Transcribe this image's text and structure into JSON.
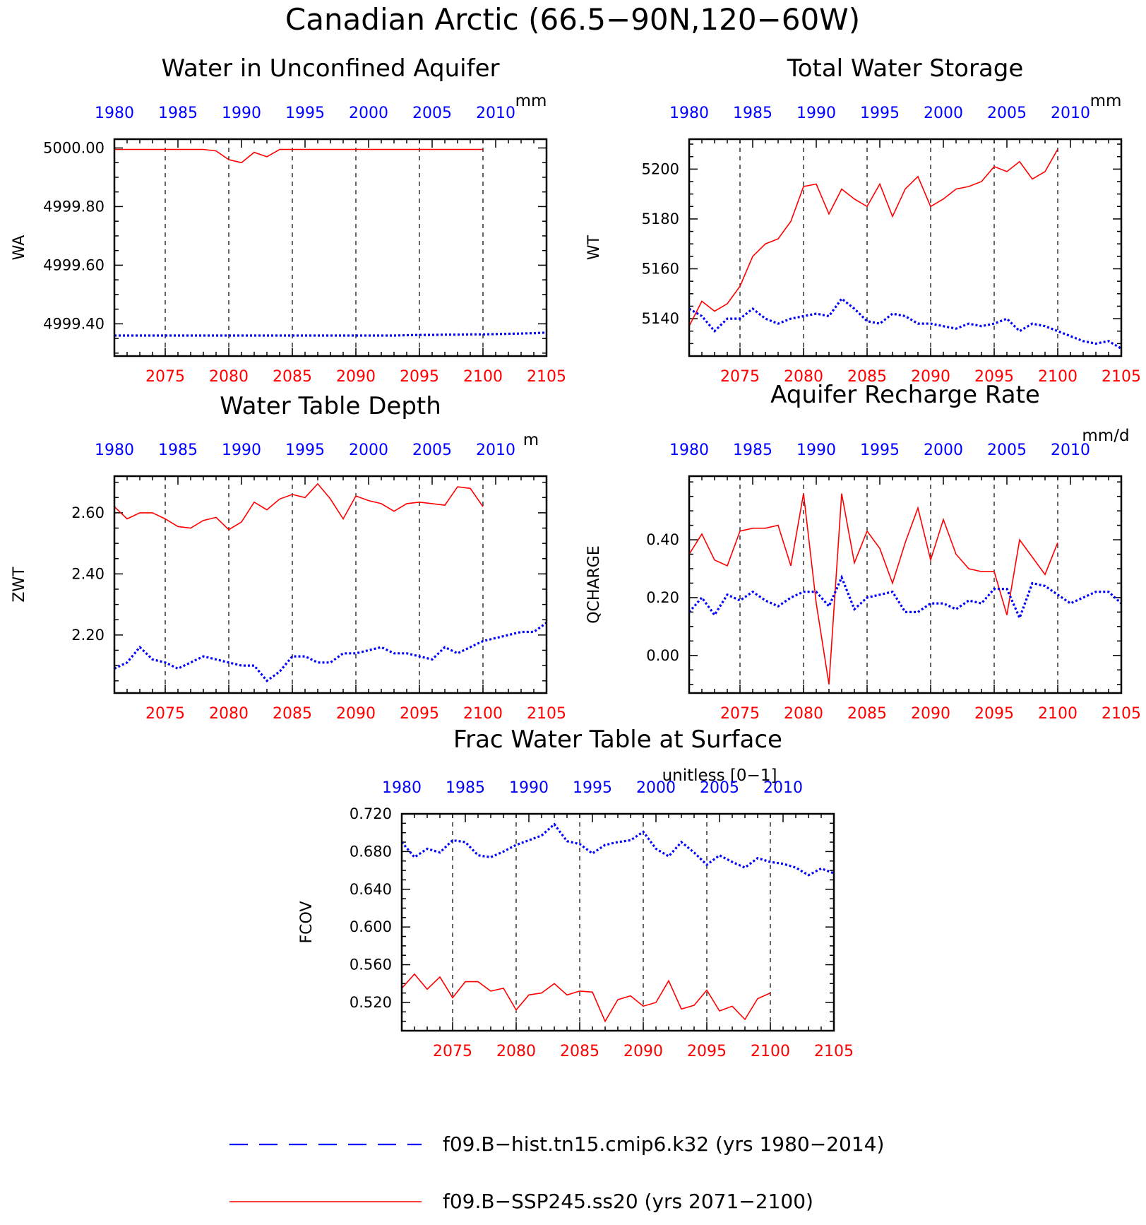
{
  "figure_title": "Canadian Arctic (66.5−90N,120−60W)",
  "colors": {
    "hist": "#0000ff",
    "ssp": "#ff0000",
    "axis": "#000000"
  },
  "legend": [
    {
      "label": "f09.B−hist.tn15.cmip6.k32 (yrs 1980−2014)",
      "series": "hist",
      "style": "dashed"
    },
    {
      "label": "f09.B−SSP245.ss20 (yrs 2071−2100)",
      "series": "ssp",
      "style": "solid"
    }
  ],
  "chart_data": [
    {
      "type": "line",
      "title": "Water in Unconfined Aquifer",
      "ylabel": "WA",
      "units": "mm",
      "ylim": [
        4999.29,
        5000.03
      ],
      "yticks": [
        4999.4,
        4999.6,
        4999.8,
        5000.0
      ],
      "ytick_labels": [
        "4999.40",
        "4999.60",
        "4999.80",
        "5000.00"
      ],
      "bottom_xaxis": {
        "range": [
          2071,
          2105
        ],
        "ticks": [
          2075,
          2080,
          2085,
          2090,
          2095,
          2100,
          2105
        ]
      },
      "top_xaxis": {
        "range": [
          1980,
          2014
        ],
        "ticks": [
          1980,
          1985,
          1990,
          1995,
          2000,
          2005,
          2010
        ]
      },
      "vgrid": [
        2075,
        2080,
        2085,
        2090,
        2095,
        2100
      ],
      "series": [
        {
          "key": "ssp",
          "start": 2071,
          "values": [
            4999.995,
            4999.995,
            4999.995,
            4999.995,
            4999.995,
            4999.995,
            4999.995,
            4999.995,
            4999.99,
            4999.96,
            4999.95,
            4999.985,
            4999.97,
            4999.995,
            4999.995,
            4999.995,
            4999.995,
            4999.995,
            4999.995,
            4999.995,
            4999.995,
            4999.995,
            4999.995,
            4999.995,
            4999.995,
            4999.995,
            4999.995,
            4999.995,
            4999.995,
            4999.995
          ]
        },
        {
          "key": "hist",
          "start": 2071,
          "values": [
            4999.36,
            4999.36,
            4999.36,
            4999.36,
            4999.36,
            4999.36,
            4999.36,
            4999.36,
            4999.36,
            4999.36,
            4999.36,
            4999.36,
            4999.36,
            4999.36,
            4999.36,
            4999.36,
            4999.36,
            4999.36,
            4999.36,
            4999.36,
            4999.36,
            4999.36,
            4999.36,
            4999.361,
            4999.362,
            4999.362,
            4999.363,
            4999.363,
            4999.364,
            4999.364,
            4999.365,
            4999.366,
            4999.367,
            4999.368,
            4999.37
          ]
        }
      ]
    },
    {
      "type": "line",
      "title": "Total Water Storage",
      "ylabel": "WT",
      "units": "mm",
      "ylim": [
        5125,
        5212
      ],
      "yticks": [
        5140,
        5160,
        5180,
        5200
      ],
      "ytick_labels": [
        "5140",
        "5160",
        "5180",
        "5200"
      ],
      "bottom_xaxis": {
        "range": [
          2071,
          2105
        ],
        "ticks": [
          2075,
          2080,
          2085,
          2090,
          2095,
          2100,
          2105
        ]
      },
      "top_xaxis": {
        "range": [
          1980,
          2014
        ],
        "ticks": [
          1980,
          1985,
          1990,
          1995,
          2000,
          2005,
          2010
        ]
      },
      "vgrid": [
        2075,
        2080,
        2085,
        2090,
        2095,
        2100
      ],
      "series": [
        {
          "key": "ssp",
          "start": 2071,
          "values": [
            5137,
            5147,
            5143,
            5146,
            5153,
            5165,
            5170,
            5172,
            5179,
            5193,
            5194,
            5182,
            5192,
            5188,
            5185,
            5194,
            5181,
            5192,
            5197,
            5185,
            5188,
            5192,
            5193,
            5195,
            5201,
            5199,
            5203,
            5196,
            5199,
            5208
          ]
        },
        {
          "key": "hist",
          "start": 2071,
          "values": [
            5144,
            5141,
            5135,
            5140,
            5140,
            5144,
            5140,
            5138,
            5140,
            5141,
            5142,
            5141,
            5148,
            5144,
            5139,
            5138,
            5142,
            5141,
            5138,
            5138,
            5137,
            5136,
            5138,
            5137,
            5138,
            5140,
            5135,
            5138,
            5137,
            5135,
            5133,
            5131,
            5130,
            5131,
            5128
          ]
        }
      ]
    },
    {
      "type": "line",
      "title": "Water Table Depth",
      "ylabel": "ZWT",
      "units": "m",
      "ylim": [
        2.01,
        2.72
      ],
      "yticks": [
        2.2,
        2.4,
        2.6
      ],
      "ytick_labels": [
        "2.20",
        "2.40",
        "2.60"
      ],
      "bottom_xaxis": {
        "range": [
          2071,
          2105
        ],
        "ticks": [
          2075,
          2080,
          2085,
          2090,
          2095,
          2100,
          2105
        ]
      },
      "top_xaxis": {
        "range": [
          1980,
          2014
        ],
        "ticks": [
          1980,
          1985,
          1990,
          1995,
          2000,
          2005,
          2010
        ]
      },
      "vgrid": [
        2075,
        2080,
        2085,
        2090,
        2095,
        2100
      ],
      "series": [
        {
          "key": "ssp",
          "start": 2071,
          "values": [
            2.62,
            2.58,
            2.6,
            2.6,
            2.58,
            2.555,
            2.55,
            2.575,
            2.585,
            2.545,
            2.57,
            2.635,
            2.61,
            2.645,
            2.66,
            2.65,
            2.695,
            2.645,
            2.58,
            2.655,
            2.64,
            2.63,
            2.605,
            2.63,
            2.635,
            2.63,
            2.625,
            2.685,
            2.68,
            2.62
          ]
        },
        {
          "key": "hist",
          "start": 2071,
          "values": [
            2.09,
            2.11,
            2.16,
            2.12,
            2.11,
            2.09,
            2.11,
            2.13,
            2.12,
            2.11,
            2.1,
            2.1,
            2.05,
            2.08,
            2.13,
            2.13,
            2.11,
            2.11,
            2.14,
            2.14,
            2.15,
            2.16,
            2.14,
            2.14,
            2.13,
            2.12,
            2.16,
            2.14,
            2.16,
            2.18,
            2.19,
            2.2,
            2.21,
            2.21,
            2.24
          ]
        }
      ]
    },
    {
      "type": "line",
      "title": "Aquifer Recharge Rate",
      "ylabel": "QCHARGE",
      "units": "mm/d",
      "ylim": [
        -0.13,
        0.62
      ],
      "yticks": [
        0.0,
        0.2,
        0.4
      ],
      "ytick_labels": [
        "0.00",
        "0.20",
        "0.40"
      ],
      "bottom_xaxis": {
        "range": [
          2071,
          2105
        ],
        "ticks": [
          2075,
          2080,
          2085,
          2090,
          2095,
          2100,
          2105
        ]
      },
      "top_xaxis": {
        "range": [
          1980,
          2014
        ],
        "ticks": [
          1980,
          1985,
          1990,
          1995,
          2000,
          2005,
          2010
        ]
      },
      "vgrid": [
        2075,
        2080,
        2085,
        2090,
        2095,
        2100
      ],
      "series": [
        {
          "key": "ssp",
          "start": 2071,
          "values": [
            0.35,
            0.42,
            0.33,
            0.31,
            0.43,
            0.44,
            0.44,
            0.45,
            0.31,
            0.56,
            0.18,
            -0.1,
            0.56,
            0.32,
            0.43,
            0.37,
            0.25,
            0.39,
            0.51,
            0.33,
            0.47,
            0.35,
            0.3,
            0.29,
            0.29,
            0.14,
            0.4,
            0.34,
            0.28,
            0.39
          ]
        },
        {
          "key": "hist",
          "start": 2071,
          "values": [
            0.15,
            0.2,
            0.14,
            0.21,
            0.19,
            0.22,
            0.19,
            0.17,
            0.2,
            0.22,
            0.22,
            0.17,
            0.27,
            0.16,
            0.2,
            0.21,
            0.22,
            0.15,
            0.15,
            0.18,
            0.18,
            0.16,
            0.19,
            0.18,
            0.23,
            0.23,
            0.13,
            0.25,
            0.24,
            0.21,
            0.18,
            0.2,
            0.22,
            0.22,
            0.18
          ]
        }
      ]
    },
    {
      "type": "line",
      "title": "Frac Water Table at Surface",
      "ylabel": "FCOV",
      "units": "unitless [0−1]",
      "ylim": [
        0.49,
        0.72
      ],
      "yticks": [
        0.52,
        0.56,
        0.6,
        0.64,
        0.68,
        0.72
      ],
      "ytick_labels": [
        "0.520",
        "0.560",
        "0.600",
        "0.640",
        "0.680",
        "0.720"
      ],
      "bottom_xaxis": {
        "range": [
          2071,
          2105
        ],
        "ticks": [
          2075,
          2080,
          2085,
          2090,
          2095,
          2100,
          2105
        ]
      },
      "top_xaxis": {
        "range": [
          1980,
          2014
        ],
        "ticks": [
          1980,
          1985,
          1990,
          1995,
          2000,
          2005,
          2010
        ]
      },
      "vgrid": [
        2075,
        2080,
        2085,
        2090,
        2095,
        2100
      ],
      "series": [
        {
          "key": "ssp",
          "start": 2071,
          "values": [
            0.535,
            0.55,
            0.534,
            0.547,
            0.525,
            0.542,
            0.542,
            0.532,
            0.535,
            0.512,
            0.528,
            0.53,
            0.54,
            0.528,
            0.532,
            0.531,
            0.5,
            0.523,
            0.527,
            0.516,
            0.52,
            0.543,
            0.513,
            0.517,
            0.533,
            0.511,
            0.516,
            0.502,
            0.524,
            0.53
          ]
        },
        {
          "key": "hist",
          "start": 2071,
          "values": [
            0.69,
            0.674,
            0.683,
            0.679,
            0.692,
            0.69,
            0.676,
            0.674,
            0.68,
            0.687,
            0.692,
            0.697,
            0.709,
            0.691,
            0.688,
            0.678,
            0.687,
            0.69,
            0.692,
            0.701,
            0.683,
            0.675,
            0.69,
            0.679,
            0.666,
            0.676,
            0.669,
            0.663,
            0.673,
            0.669,
            0.667,
            0.663,
            0.655,
            0.662,
            0.657
          ]
        }
      ]
    }
  ]
}
